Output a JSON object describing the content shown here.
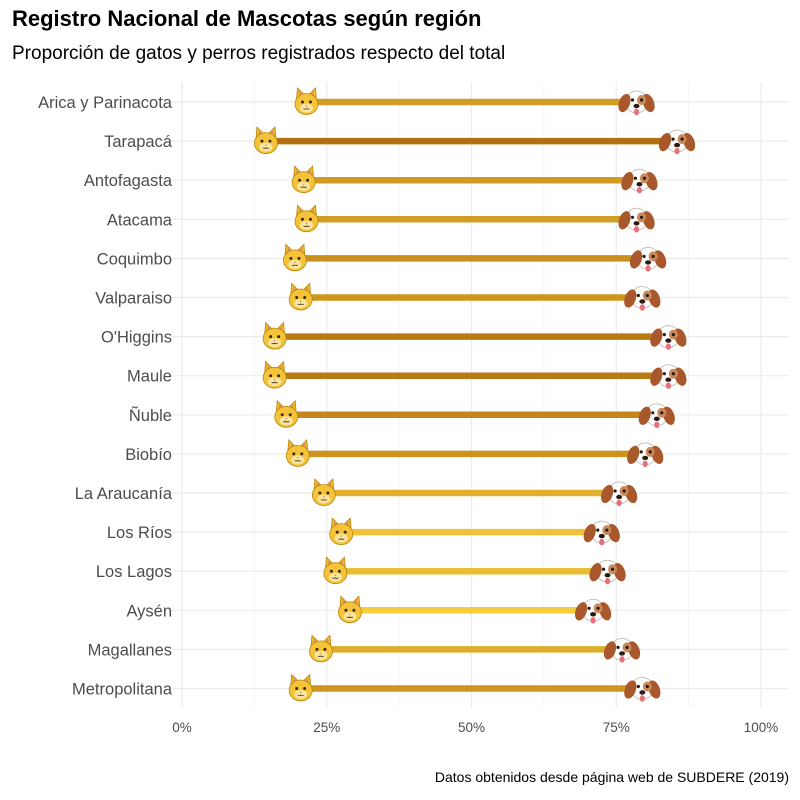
{
  "chart_data": {
    "type": "dumbbell",
    "title": "Registro Nacional de Mascotas según región",
    "subtitle": "Proporción de gatos y perros registrados respecto del total",
    "caption": "Datos obtenidos desde página web de SUBDERE (2019)",
    "xlabel": "",
    "ylabel": "",
    "xlim": [
      0,
      100
    ],
    "x_ticks": [
      "0%",
      "25%",
      "50%",
      "75%",
      "100%"
    ],
    "x_tick_values": [
      0,
      25,
      50,
      75,
      100
    ],
    "series": [
      {
        "name": "gatos",
        "icon": "cat-icon"
      },
      {
        "name": "perros",
        "icon": "dog-icon"
      }
    ],
    "categories": [
      "Arica y Parinacota",
      "Tarapacá",
      "Antofagasta",
      "Atacama",
      "Coquimbo",
      "Valparaiso",
      "O'Higgins",
      "Maule",
      "Ñuble",
      "Biobío",
      "La Araucanía",
      "Los Ríos",
      "Los Lagos",
      "Aysén",
      "Magallanes",
      "Metropolitana"
    ],
    "gatos": [
      21.5,
      14.5,
      21.0,
      21.5,
      19.5,
      20.5,
      16.0,
      16.0,
      18.0,
      20.0,
      24.5,
      27.5,
      26.5,
      29.0,
      24.0,
      20.5
    ],
    "perros": [
      78.5,
      85.5,
      79.0,
      78.5,
      80.5,
      79.5,
      84.0,
      84.0,
      82.0,
      80.0,
      75.5,
      72.5,
      73.5,
      71.0,
      76.0,
      79.5
    ]
  }
}
